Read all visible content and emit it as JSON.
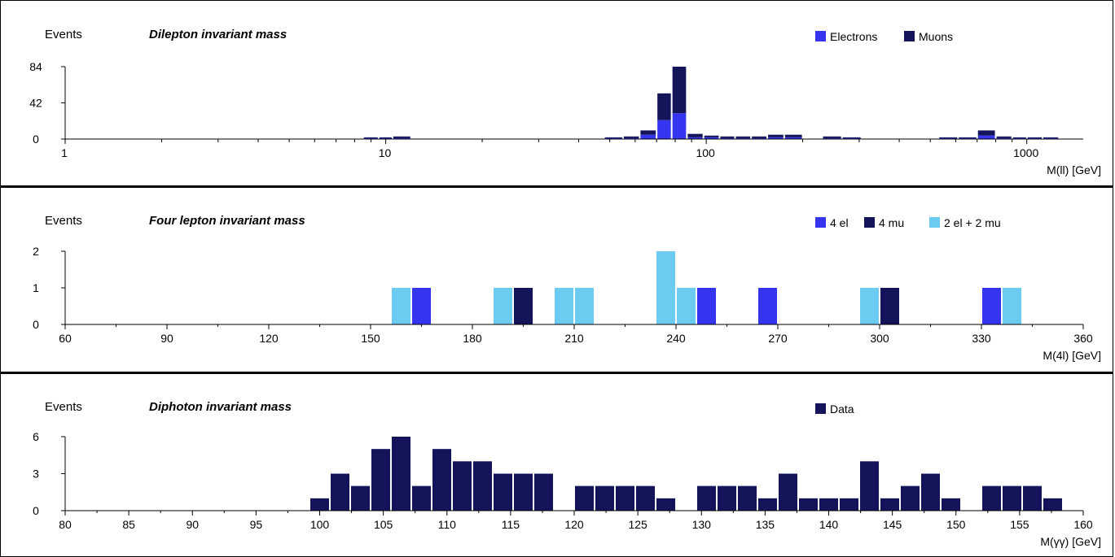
{
  "chart_data": [
    {
      "type": "bar",
      "title": "Dilepton invariant mass",
      "ylabel": "Events",
      "xlabel": "M(ll) [GeV]",
      "x_scale": "log",
      "xlim": [
        1,
        1500
      ],
      "ylim": [
        0,
        84
      ],
      "yticks": [
        0,
        42,
        84
      ],
      "xticks": [
        1,
        10,
        100,
        1000
      ],
      "stacked": true,
      "legend": "top-right",
      "bin_edges": [
        8.5,
        9.5,
        10.5,
        12,
        48,
        55,
        62,
        70,
        78,
        87,
        98,
        110,
        123,
        138,
        155,
        175,
        200,
        230,
        265,
        305,
        350,
        400,
        460,
        530,
        610,
        700,
        800,
        900,
        1000,
        1120,
        1260,
        1400
      ],
      "series": [
        {
          "name": "Electrons",
          "color": "#3535f0",
          "values": [
            1,
            1,
            1,
            0,
            1,
            1,
            5,
            22,
            30,
            2,
            2,
            1,
            1,
            1,
            2,
            2,
            0,
            1,
            1,
            0,
            0,
            0,
            0,
            1,
            1,
            4,
            1,
            1,
            1,
            1,
            0
          ]
        },
        {
          "name": "Muons",
          "color": "#14145a",
          "values": [
            1,
            1,
            2,
            0,
            1,
            2,
            5,
            31,
            54,
            4,
            2,
            2,
            2,
            2,
            3,
            3,
            0,
            2,
            1,
            0,
            0,
            0,
            0,
            1,
            1,
            6,
            2,
            1,
            1,
            1,
            0
          ]
        }
      ]
    },
    {
      "type": "bar",
      "title": "Four lepton invariant mass",
      "ylabel": "Events",
      "xlabel": "M(4l) [GeV]",
      "xlim": [
        60,
        360
      ],
      "ylim": [
        0,
        2
      ],
      "yticks": [
        0,
        1,
        2
      ],
      "xticks": [
        60,
        90,
        120,
        150,
        180,
        210,
        240,
        270,
        300,
        330,
        360
      ],
      "bin_width": 6,
      "legend": "top-right",
      "series": [
        {
          "name": "4 el",
          "color": "#3535f0",
          "bins": [
            [
              162,
              1
            ],
            [
              246,
              1
            ],
            [
              264,
              1
            ],
            [
              330,
              1
            ]
          ]
        },
        {
          "name": "4 mu",
          "color": "#14145a",
          "bins": [
            [
              192,
              1
            ],
            [
              300,
              1
            ]
          ]
        },
        {
          "name": "2 el + 2 mu",
          "color": "#6ccbf0",
          "bins": [
            [
              156,
              1
            ],
            [
              186,
              1
            ],
            [
              204,
              1
            ],
            [
              210,
              1
            ],
            [
              234,
              2
            ],
            [
              240,
              1
            ],
            [
              294,
              1
            ],
            [
              336,
              1
            ]
          ]
        }
      ]
    },
    {
      "type": "bar",
      "title": "Diphoton invariant mass",
      "ylabel": "Events",
      "xlabel": "M(γγ) [GeV]",
      "xlim": [
        80,
        160
      ],
      "ylim": [
        0,
        6
      ],
      "yticks": [
        0,
        3,
        6
      ],
      "xticks": [
        80,
        85,
        90,
        95,
        100,
        105,
        110,
        115,
        120,
        125,
        130,
        135,
        140,
        145,
        150,
        155,
        160
      ],
      "bin_width": 1.6,
      "bin_start": 99.2,
      "legend": "top-right",
      "series": [
        {
          "name": "Data",
          "color": "#14145a",
          "values": [
            1,
            3,
            2,
            5,
            6,
            2,
            5,
            4,
            4,
            3,
            3,
            3,
            0,
            2,
            2,
            2,
            2,
            1,
            0,
            2,
            2,
            2,
            1,
            3,
            1,
            1,
            1,
            4,
            1,
            2,
            3,
            1,
            0,
            2,
            2,
            2,
            1
          ]
        }
      ]
    }
  ]
}
